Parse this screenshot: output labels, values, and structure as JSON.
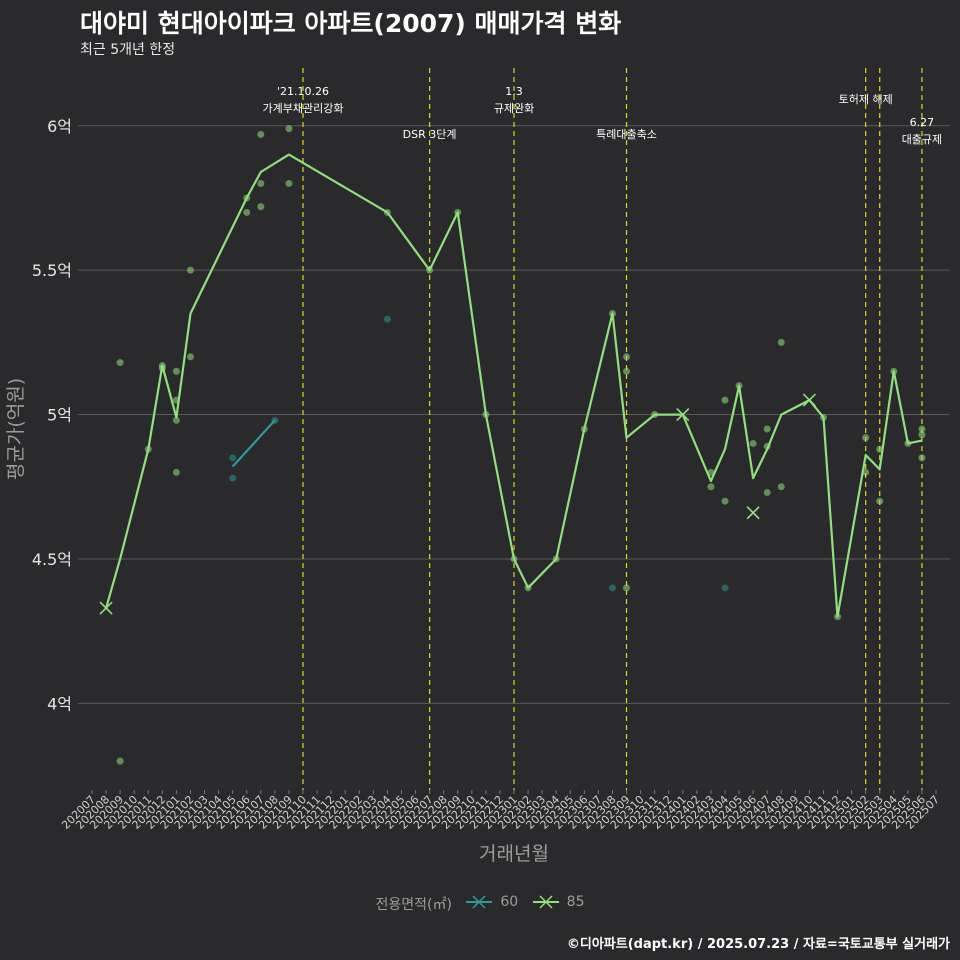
{
  "title": "대야미 현대아이파크 아파트(2007) 매매가격 변화",
  "subtitle": "최근 5개년 한정",
  "caption": "©디아파트(dapt.kr) / 2025.07.23 / 자료=국토교통부 실거래가",
  "legend": {
    "title": "전용면적(㎡)",
    "items": [
      {
        "label": "60",
        "color": "#2a9d9a"
      },
      {
        "label": "85",
        "color": "#90e07c"
      }
    ]
  },
  "colors": {
    "background": "#2a2a2c",
    "grid": "#5a5a5a",
    "vline": "#d8d820"
  },
  "chart_data": {
    "type": "line",
    "xlabel": "거래년월",
    "ylabel": "평균가(억원)",
    "ylim": [
      3.7,
      6.2
    ],
    "y_ticks": [
      {
        "value": 4.0,
        "label": "4억"
      },
      {
        "value": 4.5,
        "label": "4.5억"
      },
      {
        "value": 5.0,
        "label": "5억"
      },
      {
        "value": 5.5,
        "label": "5.5억"
      },
      {
        "value": 6.0,
        "label": "6억"
      }
    ],
    "categories": [
      "202007",
      "202008",
      "202009",
      "202010",
      "202011",
      "202012",
      "202101",
      "202102",
      "202103",
      "202104",
      "202105",
      "202106",
      "202107",
      "202108",
      "202109",
      "202110",
      "202111",
      "202112",
      "202201",
      "202202",
      "202203",
      "202204",
      "202205",
      "202206",
      "202207",
      "202208",
      "202209",
      "202210",
      "202211",
      "202212",
      "202301",
      "202302",
      "202303",
      "202304",
      "202305",
      "202306",
      "202307",
      "202308",
      "202309",
      "202310",
      "202311",
      "202312",
      "202401",
      "202402",
      "202403",
      "202404",
      "202405",
      "202406",
      "202407",
      "202408",
      "202409",
      "202410",
      "202411",
      "202412",
      "202501",
      "202502",
      "202503",
      "202504",
      "202505",
      "202506",
      "202507"
    ],
    "series": [
      {
        "name": "60",
        "color": "#2a9d9a",
        "points": [
          [
            10,
            4.82
          ],
          [
            13,
            4.98
          ]
        ]
      },
      {
        "name": "85",
        "color": "#90e07c",
        "points": [
          [
            1,
            4.33
          ],
          [
            2,
            4.5
          ],
          [
            4,
            4.88
          ],
          [
            5,
            5.17
          ],
          [
            6,
            4.99
          ],
          [
            7,
            5.35
          ],
          [
            11,
            5.75
          ],
          [
            12,
            5.84
          ],
          [
            14,
            5.9
          ],
          [
            21,
            5.7
          ],
          [
            24,
            5.5
          ],
          [
            26,
            5.7
          ],
          [
            28,
            5.0
          ],
          [
            30,
            4.5
          ],
          [
            31,
            4.4
          ],
          [
            33,
            4.5
          ],
          [
            35,
            4.95
          ],
          [
            37,
            5.35
          ],
          [
            38,
            4.92
          ],
          [
            40,
            5.0
          ],
          [
            42,
            5.0
          ],
          [
            44,
            4.77
          ],
          [
            45,
            4.88
          ],
          [
            46,
            5.1
          ],
          [
            47,
            4.78
          ],
          [
            48,
            4.88
          ],
          [
            49,
            5.0
          ],
          [
            51,
            5.05
          ],
          [
            52,
            4.99
          ],
          [
            53,
            4.3
          ],
          [
            55,
            4.86
          ],
          [
            56,
            4.81
          ],
          [
            57,
            5.15
          ],
          [
            58,
            4.9
          ],
          [
            59,
            4.91
          ]
        ]
      }
    ],
    "single_trade_markers": [
      {
        "series": "85",
        "x": 1,
        "y": 4.33
      },
      {
        "series": "85",
        "x": 42,
        "y": 5.0
      },
      {
        "series": "85",
        "x": 47,
        "y": 4.66
      },
      {
        "series": "85",
        "x": 51,
        "y": 5.05
      }
    ],
    "scatter": [
      {
        "series": "85",
        "x": 2,
        "y": 5.18
      },
      {
        "series": "85",
        "x": 2,
        "y": 3.8
      },
      {
        "series": "85",
        "x": 4,
        "y": 4.88
      },
      {
        "series": "85",
        "x": 5,
        "y": 5.17
      },
      {
        "series": "85",
        "x": 5,
        "y": 5.16
      },
      {
        "series": "85",
        "x": 6,
        "y": 5.15
      },
      {
        "series": "85",
        "x": 6,
        "y": 5.05
      },
      {
        "series": "85",
        "x": 6,
        "y": 4.98
      },
      {
        "series": "85",
        "x": 6,
        "y": 4.8
      },
      {
        "series": "85",
        "x": 7,
        "y": 5.5
      },
      {
        "series": "85",
        "x": 7,
        "y": 5.2
      },
      {
        "series": "60",
        "x": 10,
        "y": 4.85
      },
      {
        "series": "60",
        "x": 10,
        "y": 4.78
      },
      {
        "series": "85",
        "x": 11,
        "y": 5.75
      },
      {
        "series": "85",
        "x": 11,
        "y": 5.7
      },
      {
        "series": "85",
        "x": 12,
        "y": 5.97
      },
      {
        "series": "85",
        "x": 12,
        "y": 5.8
      },
      {
        "series": "85",
        "x": 12,
        "y": 5.72
      },
      {
        "series": "60",
        "x": 13,
        "y": 4.98
      },
      {
        "series": "85",
        "x": 14,
        "y": 5.99
      },
      {
        "series": "85",
        "x": 14,
        "y": 5.8
      },
      {
        "series": "85",
        "x": 21,
        "y": 5.7
      },
      {
        "series": "60",
        "x": 21,
        "y": 5.33
      },
      {
        "series": "85",
        "x": 24,
        "y": 5.5
      },
      {
        "series": "85",
        "x": 26,
        "y": 5.7
      },
      {
        "series": "85",
        "x": 28,
        "y": 5.0
      },
      {
        "series": "85",
        "x": 30,
        "y": 4.5
      },
      {
        "series": "85",
        "x": 31,
        "y": 4.4
      },
      {
        "series": "85",
        "x": 33,
        "y": 4.5
      },
      {
        "series": "85",
        "x": 35,
        "y": 4.95
      },
      {
        "series": "85",
        "x": 37,
        "y": 5.35
      },
      {
        "series": "60",
        "x": 37,
        "y": 4.4
      },
      {
        "series": "85",
        "x": 38,
        "y": 5.2
      },
      {
        "series": "85",
        "x": 38,
        "y": 5.15
      },
      {
        "series": "85",
        "x": 38,
        "y": 4.4
      },
      {
        "series": "85",
        "x": 40,
        "y": 5.0
      },
      {
        "series": "85",
        "x": 44,
        "y": 4.8
      },
      {
        "series": "85",
        "x": 44,
        "y": 4.75
      },
      {
        "series": "85",
        "x": 45,
        "y": 5.05
      },
      {
        "series": "85",
        "x": 45,
        "y": 4.7
      },
      {
        "series": "60",
        "x": 45,
        "y": 4.4
      },
      {
        "series": "85",
        "x": 46,
        "y": 5.1
      },
      {
        "series": "85",
        "x": 47,
        "y": 4.9
      },
      {
        "series": "85",
        "x": 48,
        "y": 4.95
      },
      {
        "series": "85",
        "x": 48,
        "y": 4.89
      },
      {
        "series": "85",
        "x": 48,
        "y": 4.73
      },
      {
        "series": "85",
        "x": 49,
        "y": 5.25
      },
      {
        "series": "85",
        "x": 49,
        "y": 4.75
      },
      {
        "series": "85",
        "x": 52,
        "y": 4.99
      },
      {
        "series": "85",
        "x": 53,
        "y": 4.3
      },
      {
        "series": "85",
        "x": 55,
        "y": 4.92
      },
      {
        "series": "85",
        "x": 55,
        "y": 4.8
      },
      {
        "series": "85",
        "x": 56,
        "y": 4.88
      },
      {
        "series": "85",
        "x": 56,
        "y": 4.7
      },
      {
        "series": "85",
        "x": 57,
        "y": 5.15
      },
      {
        "series": "85",
        "x": 58,
        "y": 4.9
      },
      {
        "series": "85",
        "x": 59,
        "y": 4.95
      },
      {
        "series": "85",
        "x": 59,
        "y": 4.93
      },
      {
        "series": "85",
        "x": 59,
        "y": 4.85
      }
    ],
    "events": [
      {
        "x": 15.0,
        "lines": [
          "'21.10.26",
          "가계부채관리강화"
        ],
        "level": 1
      },
      {
        "x": 24.0,
        "lines": [
          "DSR 3단계"
        ],
        "level": 2
      },
      {
        "x": 30.0,
        "lines": [
          "1.3",
          "규제완화"
        ],
        "level": 1
      },
      {
        "x": 38.0,
        "lines": [
          "특례대출축소"
        ],
        "level": 2
      },
      {
        "x": 55.0,
        "lines": [
          "토허제 해제"
        ],
        "level": 1
      },
      {
        "x": 56.0,
        "lines": [],
        "level": 1
      },
      {
        "x": 59.0,
        "lines": [
          "6.27",
          "대출규제"
        ],
        "level": 2
      }
    ]
  }
}
